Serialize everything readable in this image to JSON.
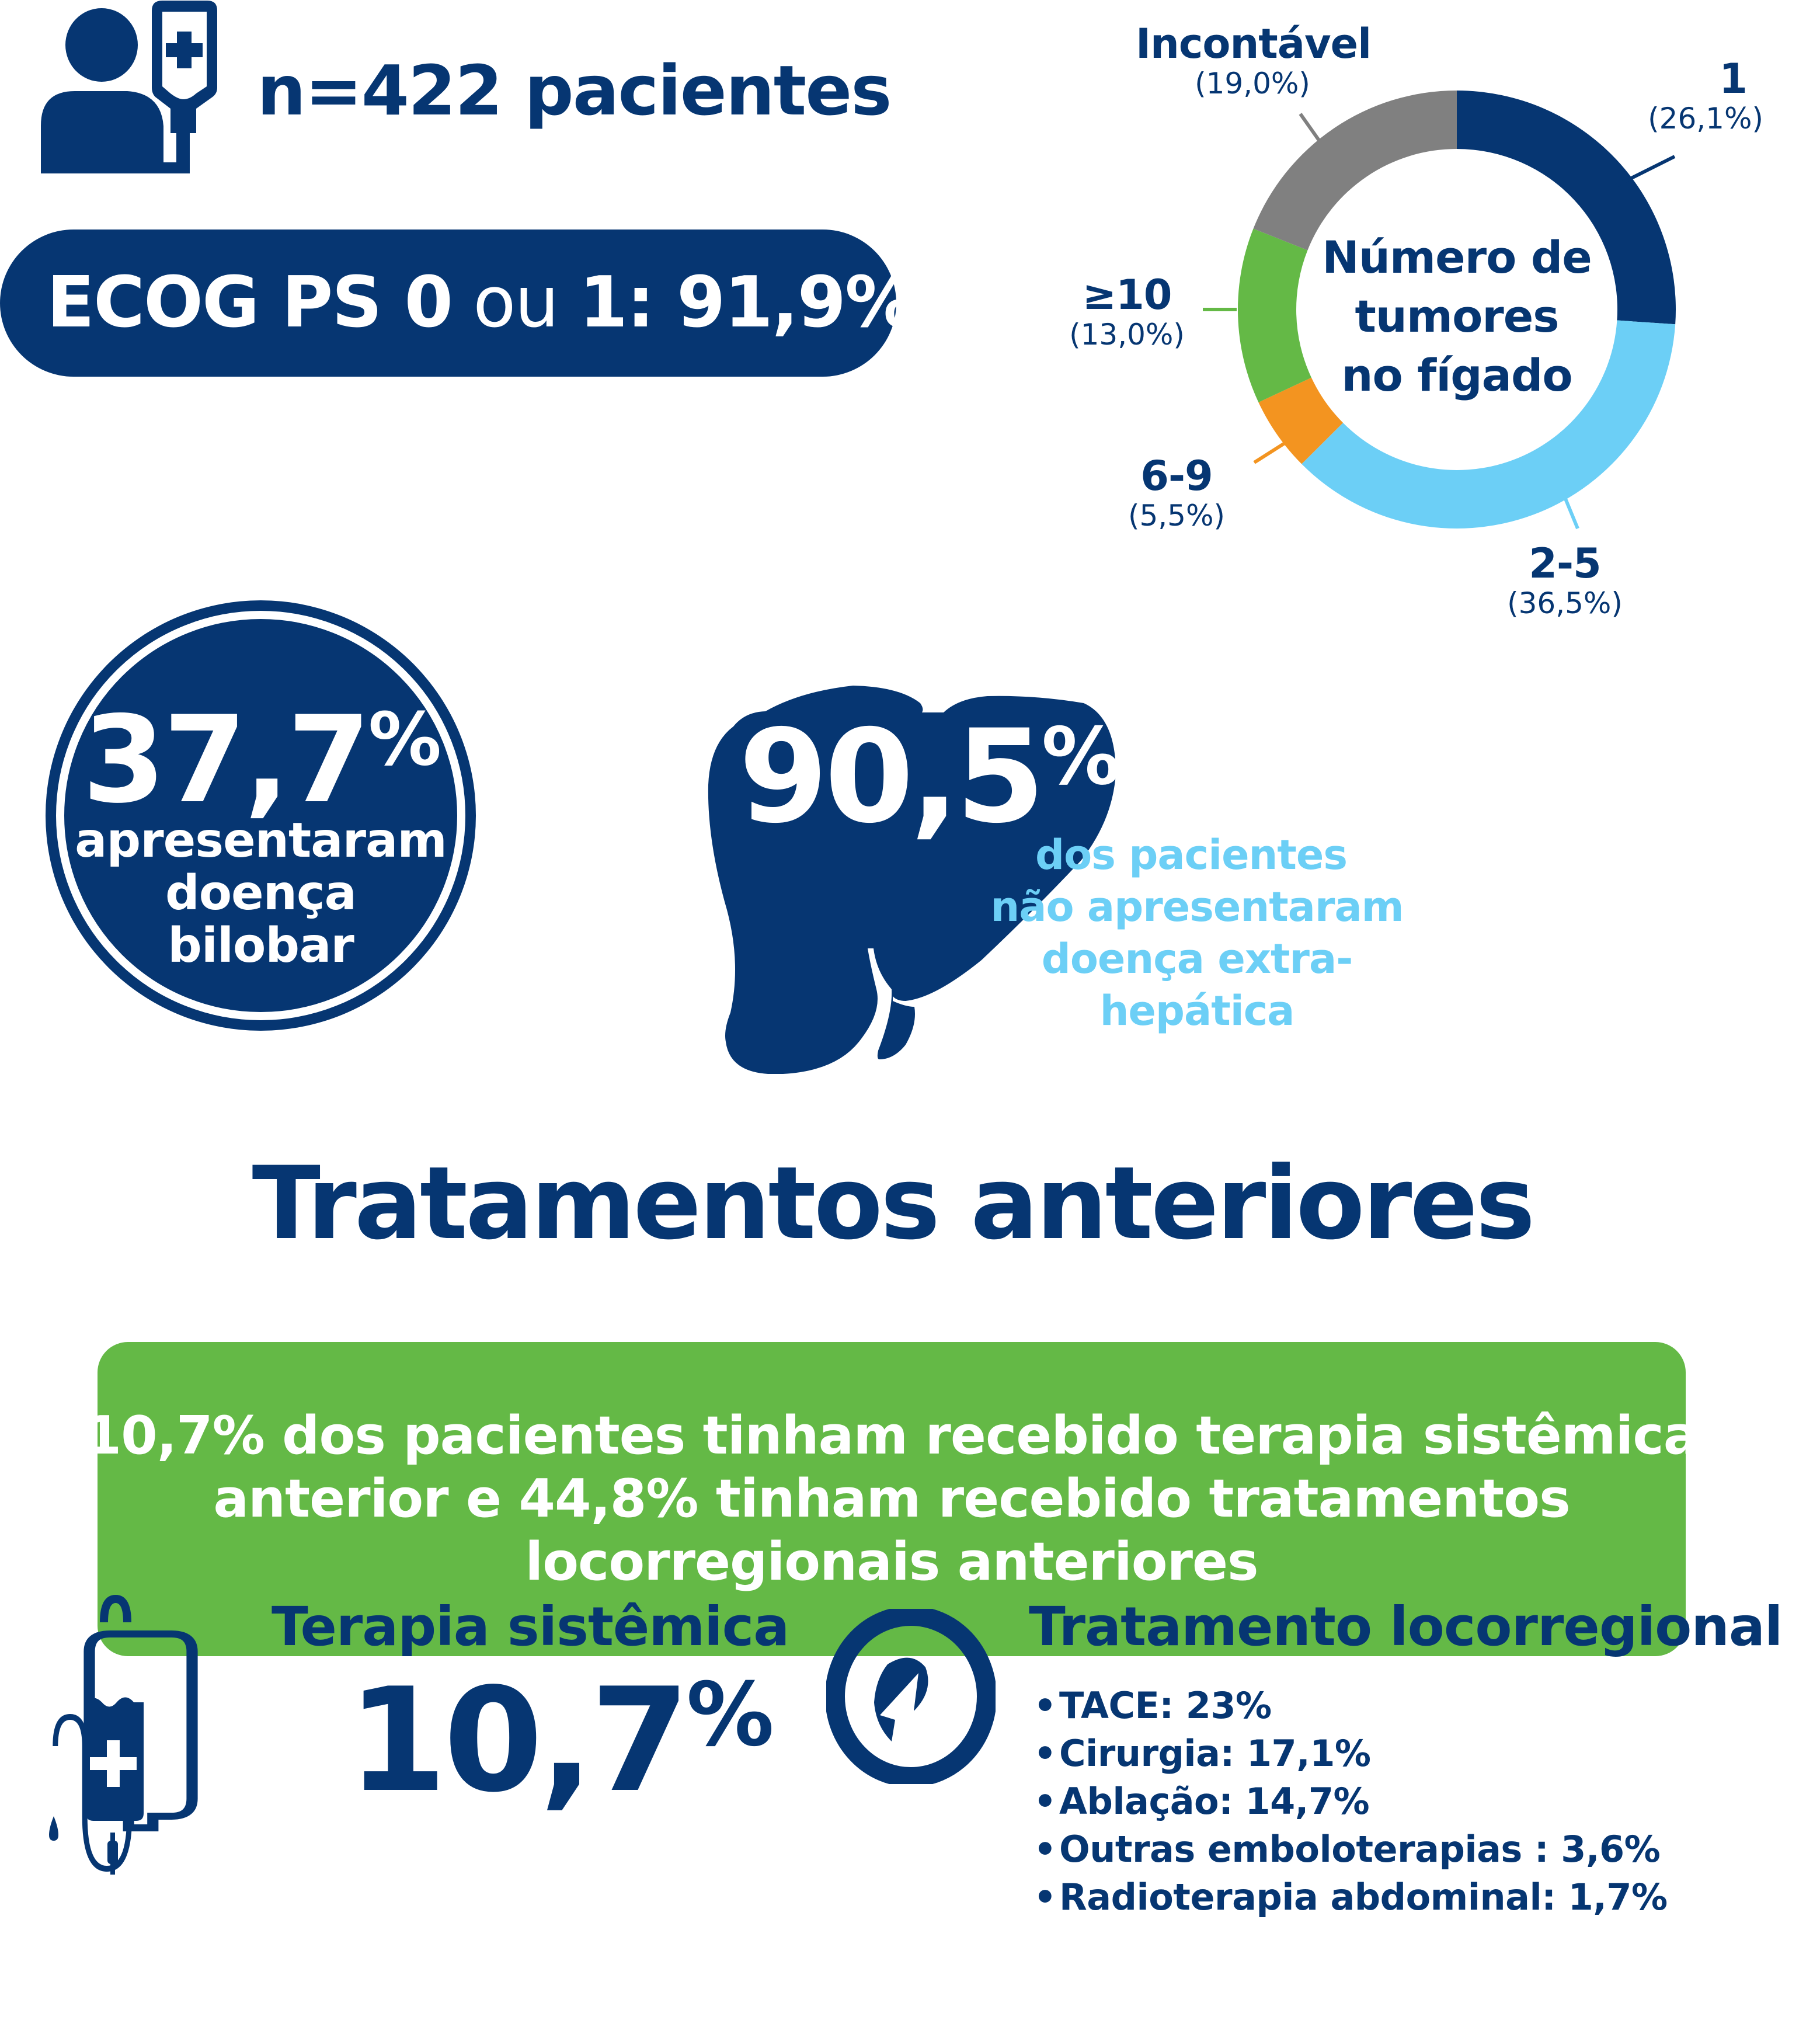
{
  "header": {
    "patients_label": "n=422 pacientes",
    "icon": "patient-with-iv-icon"
  },
  "ecog": {
    "prefix": "ECOG PS 0",
    "connector": " ou ",
    "suffix": "1: 91,9%"
  },
  "tumor_donut": {
    "center_lines": [
      "Número de",
      "tumores",
      "no fígado"
    ],
    "labels": [
      {
        "category": "1",
        "percent_text": "(26,1%)"
      },
      {
        "category": "2-5",
        "percent_text": "(36,5%)"
      },
      {
        "category": "6-9",
        "percent_text": "(5,5%)"
      },
      {
        "category": "≥10",
        "percent_text": "(13,0%)"
      },
      {
        "category": "Incontável",
        "percent_text": "(19,0%)"
      }
    ]
  },
  "bilobar": {
    "value": "37,7",
    "unit": "%",
    "desc_lines": [
      "apresentaram",
      "doença",
      "bilobar"
    ]
  },
  "extrahepatic": {
    "value": "90,5",
    "unit": "%",
    "desc_lines": [
      "dos pacientes",
      "não apresentaram",
      "doença extra-hepática"
    ],
    "icon": "liver-icon"
  },
  "section": {
    "title": "Tratamentos anteriores"
  },
  "summary": {
    "lines": [
      "10,7% dos pacientes tinham recebido terapia sistêmica",
      "anterior e 44,8% tinham recebido tratamentos",
      "locorregionais anteriores"
    ]
  },
  "systemic": {
    "title": "Terapia sistêmica",
    "value": "10,7",
    "unit": "%",
    "icon": "iv-bag-icon"
  },
  "locoregional": {
    "title": "Tratamento locorregional",
    "icon": "target-arrow-icon",
    "bullet": "•",
    "items": [
      "TACE: 23%",
      "Cirurgia: 17,1%",
      "Ablação: 14,7%",
      "Outras emboloterapias : 3,6%",
      "Radioterapia abdominal: 1,7%"
    ]
  },
  "colors": {
    "navy": "#063672",
    "light_blue": "#6ccff6",
    "orange": "#f39420",
    "green": "#64b946",
    "grey": "#808080",
    "white": "#ffffff"
  },
  "chart_data": {
    "type": "pie",
    "subtype": "donut",
    "title": "Número de tumores no fígado",
    "categories": [
      "1",
      "2-5",
      "6-9",
      "≥10",
      "Incontável"
    ],
    "values": [
      26.1,
      36.5,
      5.5,
      13.0,
      19.0
    ],
    "unit": "%",
    "colors": [
      "#063672",
      "#6ccff6",
      "#f39420",
      "#64b946",
      "#808080"
    ],
    "start_angle": "12 o'clock",
    "direction": "clockwise",
    "legend": "none (callout labels)"
  }
}
